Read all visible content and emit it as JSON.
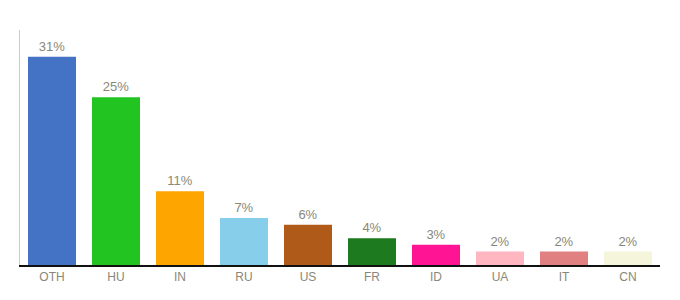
{
  "chart_data": {
    "type": "bar",
    "categories": [
      "OTH",
      "HU",
      "IN",
      "RU",
      "US",
      "FR",
      "ID",
      "UA",
      "IT",
      "CN"
    ],
    "values": [
      31,
      25,
      11,
      7,
      6,
      4,
      3,
      2,
      2,
      2
    ],
    "value_labels": [
      "31%",
      "25%",
      "11%",
      "7%",
      "6%",
      "4%",
      "3%",
      "2%",
      "2%",
      "2%"
    ],
    "colors": [
      "#4472c4",
      "#21c421",
      "#ffa500",
      "#87ceeb",
      "#b05a1a",
      "#1e7a1e",
      "#ff1493",
      "#ffb6c1",
      "#e08080",
      "#f5f5dc"
    ],
    "ylim": [
      0,
      35
    ],
    "data_labels": true,
    "tick_labels": "x",
    "grid": false
  }
}
